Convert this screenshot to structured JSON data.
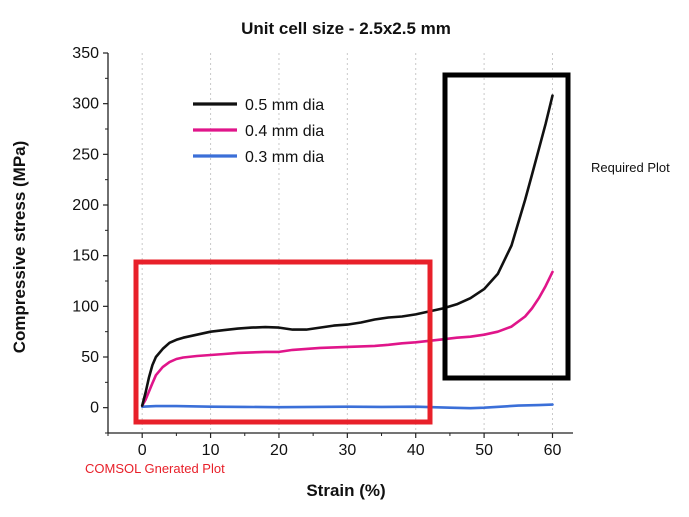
{
  "chart_data": {
    "type": "line",
    "title": "Unit cell size - 2.5x2.5 mm",
    "xlabel": "Strain (%)",
    "ylabel": "Compressive stress (MPa)",
    "xlim": [
      -5,
      63
    ],
    "ylim": [
      -25,
      350
    ],
    "xticks": [
      0,
      10,
      20,
      30,
      40,
      50,
      60
    ],
    "yticks": [
      0,
      50,
      100,
      150,
      200,
      250,
      300,
      350
    ],
    "grid": "vertical",
    "legend_position": "top-left",
    "series": [
      {
        "name": "0.5 mm dia",
        "color": "#111111",
        "x": [
          0,
          0.5,
          1,
          1.5,
          2,
          3,
          4,
          5,
          6,
          8,
          10,
          12,
          14,
          16,
          18,
          20,
          22,
          24,
          26,
          28,
          30,
          32,
          34,
          36,
          38,
          40,
          42,
          44,
          46,
          48,
          50,
          52,
          54,
          56,
          57,
          58,
          59,
          60
        ],
        "y": [
          2,
          15,
          30,
          42,
          50,
          58,
          64,
          67,
          69,
          72,
          75,
          76.5,
          78,
          79,
          79.5,
          79,
          77,
          77,
          79,
          81,
          82,
          84,
          87,
          89,
          90,
          92,
          95,
          98,
          102,
          108,
          117,
          132,
          160,
          205,
          230,
          255,
          280,
          308
        ]
      },
      {
        "name": "0.4 mm dia",
        "color": "#e0158a",
        "x": [
          0,
          0.5,
          1,
          1.5,
          2,
          3,
          4,
          5,
          6,
          8,
          10,
          12,
          14,
          16,
          18,
          20,
          22,
          24,
          26,
          28,
          30,
          32,
          34,
          36,
          38,
          40,
          42,
          44,
          46,
          48,
          50,
          52,
          54,
          56,
          57,
          58,
          59,
          60
        ],
        "y": [
          2,
          8,
          16,
          24,
          32,
          40,
          45,
          48,
          49.5,
          51,
          52,
          53,
          54,
          54.5,
          55,
          55,
          57,
          58,
          59,
          59.5,
          60,
          60.5,
          61,
          62,
          63.5,
          64.5,
          66,
          67.5,
          69,
          70,
          72,
          75,
          80,
          90,
          98,
          108,
          120,
          134
        ]
      },
      {
        "name": "0.3 mm dia",
        "color": "#3b6fd8",
        "x": [
          0,
          2,
          5,
          10,
          15,
          20,
          25,
          30,
          35,
          40,
          45,
          48,
          50,
          55,
          58,
          60
        ],
        "y": [
          1,
          1.5,
          1.5,
          1,
          0.8,
          0.5,
          0.8,
          1,
          0.8,
          1,
          0,
          -0.5,
          0,
          2,
          2.5,
          3
        ]
      }
    ]
  },
  "annotations": {
    "comsol_box_label": "COMSOL Gnerated Plot",
    "required_box_label": "Required Plot",
    "comsol_box_color": "#e8202a",
    "required_box_color": "#000000"
  }
}
